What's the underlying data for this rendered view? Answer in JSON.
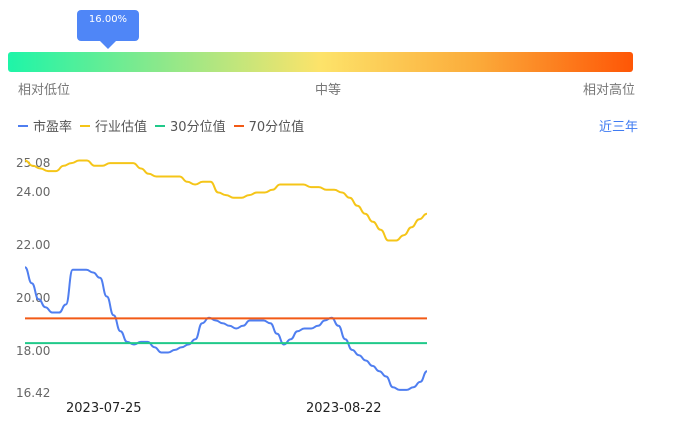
{
  "gauge": {
    "tooltip": "16.00%",
    "percentile": 0.16,
    "labels": {
      "low": "相对低位",
      "mid": "中等",
      "high": "相对高位"
    }
  },
  "legend": [
    {
      "label": "市盈率",
      "color": "#4f7ef0"
    },
    {
      "label": "行业估值",
      "color": "#f5c518"
    },
    {
      "label": "30分位值",
      "color": "#20c98a"
    },
    {
      "label": "70分位值",
      "color": "#f25a16"
    }
  ],
  "range_link": "近三年",
  "chart_data": {
    "type": "line",
    "yticks": [
      "25.08",
      "24.00",
      "22.00",
      "20.00",
      "18.00",
      "16.42"
    ],
    "ylim": [
      16.42,
      25.08
    ],
    "xticks": [
      "2023-07-25",
      "2023-08-22"
    ],
    "series": [
      {
        "name": "市盈率",
        "color": "#4f7ef0",
        "values": [
          21.1,
          20.5,
          19.9,
          19.6,
          19.4,
          19.4,
          19.7,
          21.0,
          21.0,
          21.0,
          20.9,
          20.7,
          20.0,
          19.3,
          18.7,
          18.3,
          18.2,
          18.3,
          18.3,
          18.1,
          17.9,
          17.9,
          18.0,
          18.1,
          18.2,
          18.4,
          19.0,
          19.2,
          19.1,
          19.0,
          18.9,
          18.8,
          18.9,
          19.1,
          19.1,
          19.1,
          19.0,
          18.6,
          18.2,
          18.4,
          18.7,
          18.8,
          18.8,
          18.9,
          19.1,
          19.2,
          18.9,
          18.4,
          18.0,
          17.8,
          17.6,
          17.4,
          17.2,
          17.0,
          16.6,
          16.5,
          16.5,
          16.6,
          16.8,
          17.2
        ]
      },
      {
        "name": "行业估值",
        "color": "#f5c518",
        "values": [
          25.1,
          24.9,
          24.8,
          24.7,
          24.7,
          24.9,
          25.0,
          25.1,
          25.1,
          24.9,
          24.9,
          25.0,
          25.0,
          25.0,
          25.0,
          24.8,
          24.6,
          24.5,
          24.5,
          24.5,
          24.5,
          24.3,
          24.2,
          24.3,
          24.3,
          23.9,
          23.8,
          23.7,
          23.7,
          23.8,
          23.9,
          23.9,
          24.0,
          24.2,
          24.2,
          24.2,
          24.2,
          24.1,
          24.1,
          24.0,
          24.0,
          23.9,
          23.7,
          23.4,
          23.1,
          22.8,
          22.5,
          22.1,
          22.1,
          22.3,
          22.6,
          22.9,
          23.1
        ]
      },
      {
        "name": "30分位值",
        "color": "#20c98a",
        "values": [
          18.25
        ]
      },
      {
        "name": "70分位值",
        "color": "#f25a16",
        "values": [
          19.18
        ]
      }
    ]
  }
}
